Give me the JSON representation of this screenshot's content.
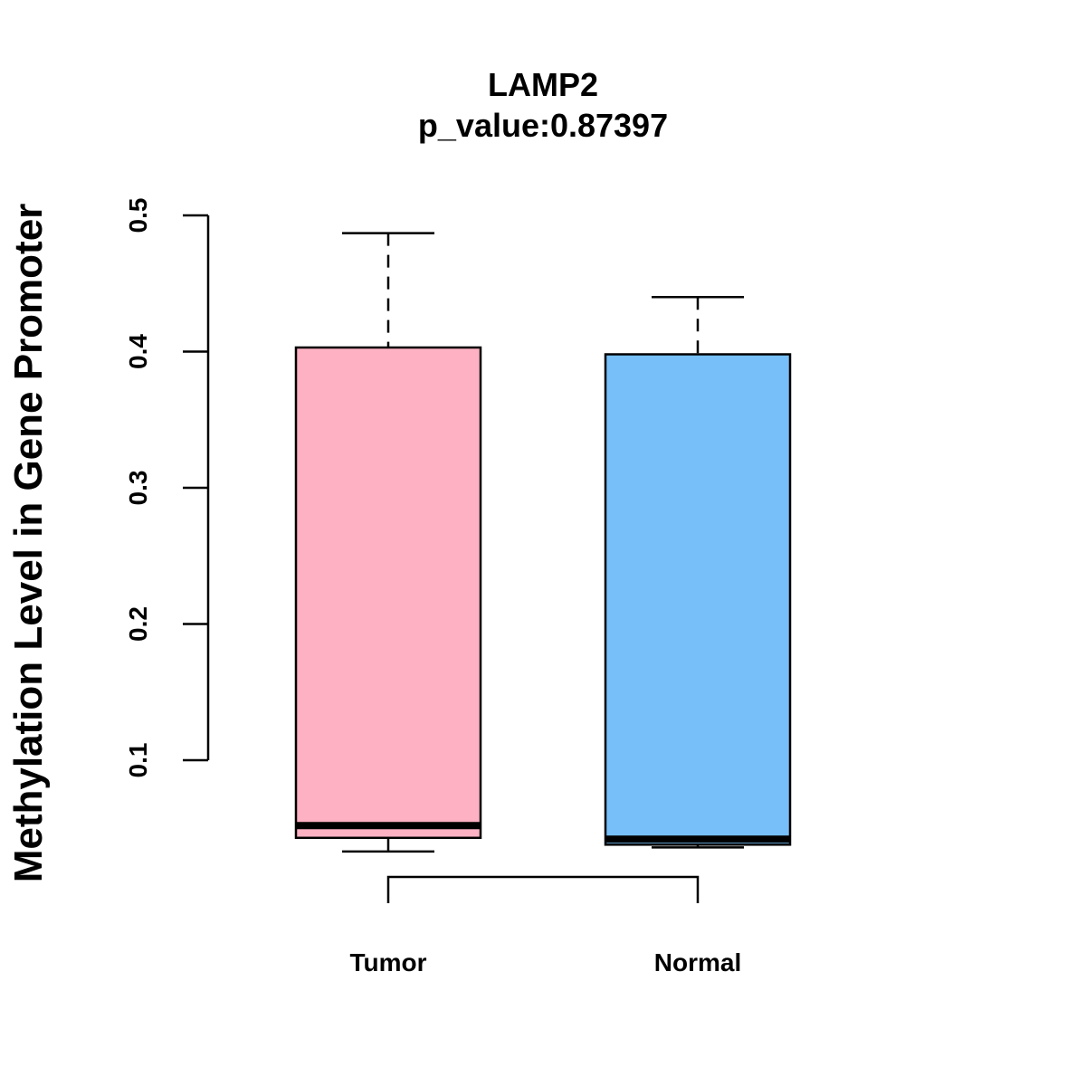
{
  "chart_data": {
    "type": "box",
    "title": "LAMP2",
    "subtitle": "p_value:0.87397",
    "xlabel": "",
    "ylabel": "Methylation Level in Gene Promoter",
    "y_ticks": [
      0.1,
      0.2,
      0.3,
      0.4,
      0.5
    ],
    "y_tick_labels": [
      "0.1",
      "0.2",
      "0.3",
      "0.4",
      "0.5"
    ],
    "grid": false,
    "legend": "none",
    "categories": [
      "Tumor",
      "Normal"
    ],
    "series": [
      {
        "name": "Tumor",
        "color": "#FDB1C2",
        "min": 0.033,
        "q1": 0.043,
        "median": 0.052,
        "q3": 0.403,
        "max": 0.487
      },
      {
        "name": "Normal",
        "color": "#76BFF9",
        "min": 0.036,
        "q1": 0.038,
        "median": 0.042,
        "q3": 0.398,
        "max": 0.44
      }
    ],
    "annotations": [
      {
        "type": "bracket",
        "between": [
          "Tumor",
          "Normal"
        ]
      }
    ]
  }
}
